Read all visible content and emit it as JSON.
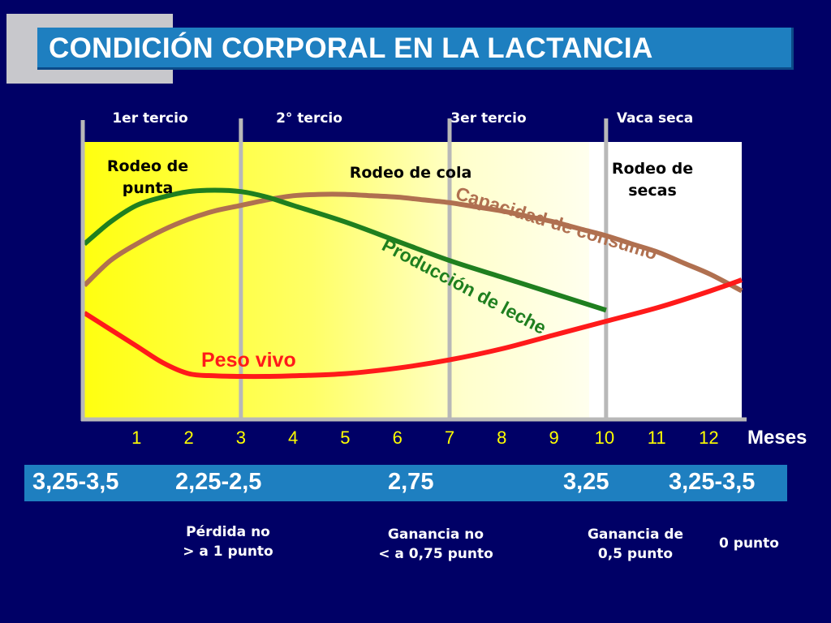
{
  "title": "CONDICIÓN CORPORAL EN LA LACTANCIA",
  "phases": [
    "1er tercio",
    "2° tercio",
    "3er tercio",
    "Vaca seca"
  ],
  "regions": [
    {
      "lines": [
        "Rodeo de",
        "punta"
      ]
    },
    {
      "lines": [
        "Rodeo de cola"
      ]
    },
    {
      "lines": [
        "Rodeo de",
        "secas"
      ]
    }
  ],
  "chart_data": {
    "type": "line",
    "xlabel": "Meses",
    "x_ticks": [
      1,
      2,
      3,
      4,
      5,
      6,
      7,
      8,
      9,
      10,
      11,
      12
    ],
    "xlim": [
      0,
      12.6
    ],
    "y_scale": "relative, unlabeled",
    "ylim": [
      0,
      100
    ],
    "phase_boundaries": [
      3,
      7,
      10
    ],
    "series": [
      {
        "name": "Capacidad de consumo",
        "color": "#b07050",
        "points": [
          [
            0,
            48
          ],
          [
            0.5,
            57
          ],
          [
            1,
            63
          ],
          [
            1.5,
            68
          ],
          [
            2,
            72
          ],
          [
            2.5,
            75
          ],
          [
            3,
            77
          ],
          [
            3.5,
            79
          ],
          [
            4,
            80.5
          ],
          [
            4.5,
            81
          ],
          [
            5,
            81
          ],
          [
            5.5,
            80.5
          ],
          [
            6,
            80
          ],
          [
            6.5,
            79
          ],
          [
            7,
            78
          ],
          [
            7.5,
            76.5
          ],
          [
            8,
            75
          ],
          [
            8.5,
            73
          ],
          [
            9,
            71
          ],
          [
            9.5,
            68.5
          ],
          [
            10,
            66
          ],
          [
            10.5,
            63
          ],
          [
            11,
            60
          ],
          [
            11.5,
            56
          ],
          [
            12,
            52
          ],
          [
            12.6,
            46
          ]
        ]
      },
      {
        "name": "Producción de leche",
        "color": "#1f7f1f",
        "points": [
          [
            0,
            63
          ],
          [
            0.5,
            71
          ],
          [
            1,
            77
          ],
          [
            1.5,
            80
          ],
          [
            2,
            82
          ],
          [
            2.5,
            82.5
          ],
          [
            3,
            82
          ],
          [
            3.5,
            80
          ],
          [
            4,
            77
          ],
          [
            5,
            71
          ],
          [
            6,
            64
          ],
          [
            7,
            57
          ],
          [
            8,
            51
          ],
          [
            9,
            45
          ],
          [
            10,
            39
          ]
        ]
      },
      {
        "name": "Peso vivo",
        "color": "#ff1a1a",
        "points": [
          [
            0,
            38
          ],
          [
            0.5,
            32
          ],
          [
            1,
            26
          ],
          [
            1.5,
            20
          ],
          [
            2,
            16
          ],
          [
            2.5,
            15.2
          ],
          [
            3,
            15
          ],
          [
            3.5,
            15
          ],
          [
            4,
            15.2
          ],
          [
            5,
            16
          ],
          [
            6,
            18
          ],
          [
            7,
            21
          ],
          [
            8,
            25
          ],
          [
            9,
            30
          ],
          [
            10,
            35
          ],
          [
            11,
            40
          ],
          [
            12,
            46
          ],
          [
            12.6,
            50
          ]
        ]
      }
    ]
  },
  "scores": [
    "3,25-3,5",
    "2,25-2,5",
    "2,75",
    "3,25",
    "3,25-3,5"
  ],
  "notes": [
    {
      "lines": [
        "Pérdida no",
        "> a 1 punto"
      ]
    },
    {
      "lines": [
        "Ganancia no",
        "< a 0,75 punto"
      ]
    },
    {
      "lines": [
        "Ganancia de",
        "0,5 punto"
      ]
    },
    {
      "lines": [
        "0 punto"
      ]
    }
  ]
}
